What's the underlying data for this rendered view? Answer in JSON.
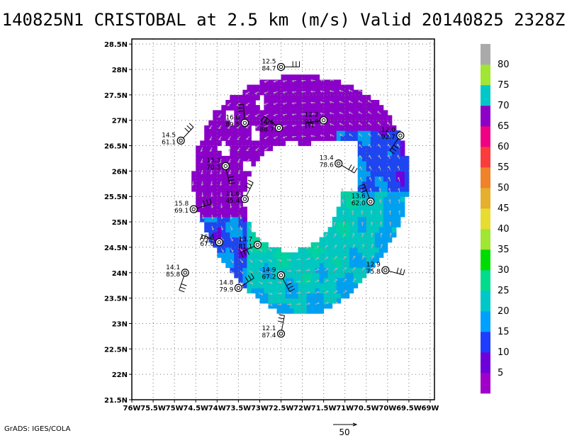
{
  "title": "140825N1 CRISTOBAL at 2.5 km (m/s) Valid 20140825 2328Z",
  "credit": "GrADS: IGES/COLA",
  "chart_data": {
    "type": "heatmap",
    "title": "140825N1 CRISTOBAL at 2.5 km (m/s) Valid 20140825 2328Z",
    "xlabel": "",
    "ylabel": "",
    "xlim": [
      -76,
      -68.9
    ],
    "ylim": [
      21.5,
      28.6
    ],
    "grid": true,
    "x_ticks": [
      "76W",
      "75.5W",
      "75W",
      "74.5W",
      "74W",
      "73.5W",
      "73W",
      "72.5W",
      "72W",
      "71.5W",
      "71W",
      "70.5W",
      "70W",
      "69.5W",
      "69W"
    ],
    "y_ticks": [
      "21.5N",
      "22N",
      "22.5N",
      "23N",
      "23.5N",
      "24N",
      "24.5N",
      "25N",
      "25.5N",
      "26N",
      "26.5N",
      "27N",
      "27.5N",
      "28N",
      "28.5N"
    ],
    "colorbar": {
      "labels": [
        "5",
        "10",
        "15",
        "20",
        "25",
        "30",
        "35",
        "40",
        "45",
        "50",
        "55",
        "60",
        "65",
        "70",
        "75",
        "80"
      ],
      "colors": [
        "#a000c8",
        "#6e00dc",
        "#1e3cff",
        "#00a0ff",
        "#00c8c8",
        "#00dc8c",
        "#00dc00",
        "#a0e632",
        "#e6dc32",
        "#e6af2d",
        "#f08228",
        "#fa3c3c",
        "#f00082",
        "#8c00c8",
        "#00c8c8",
        "#a0e632",
        "#aaaaaa"
      ]
    },
    "vector_reference": "50",
    "stations": [
      {
        "lon": -72.5,
        "lat": 28.05,
        "speed": "12.5",
        "dir": "84.7"
      },
      {
        "lon": -74.85,
        "lat": 26.6,
        "speed": "14.5",
        "dir": "61.1"
      },
      {
        "lon": -73.35,
        "lat": 26.95,
        "speed": "16.6",
        "dir": "89.5"
      },
      {
        "lon": -72.55,
        "lat": 26.85,
        "speed": "14.6",
        "dir": "88.7"
      },
      {
        "lon": -71.5,
        "lat": 27.0,
        "speed": "12.2",
        "dir": "91.6"
      },
      {
        "lon": -69.7,
        "lat": 26.7,
        "speed": "12.0",
        "dir": "92.7"
      },
      {
        "lon": -73.8,
        "lat": 26.1,
        "speed": "15.3",
        "dir": "70.3"
      },
      {
        "lon": -71.15,
        "lat": 26.15,
        "speed": "13.4",
        "dir": "78.6"
      },
      {
        "lon": -74.55,
        "lat": 25.25,
        "speed": "15.8",
        "dir": "69.1"
      },
      {
        "lon": -73.35,
        "lat": 25.45,
        "speed": "11.6",
        "dir": "45.4"
      },
      {
        "lon": -70.4,
        "lat": 25.4,
        "speed": "13.6",
        "dir": "62.0"
      },
      {
        "lon": -73.95,
        "lat": 24.6,
        "speed": "16.4",
        "dir": "67.6"
      },
      {
        "lon": -73.05,
        "lat": 24.55,
        "speed": "13.7",
        "dir": "81.1"
      },
      {
        "lon": -74.75,
        "lat": 24.0,
        "speed": "14.1",
        "dir": "85.8"
      },
      {
        "lon": -72.5,
        "lat": 23.95,
        "speed": "14.9",
        "dir": "67.2"
      },
      {
        "lon": -70.05,
        "lat": 24.05,
        "speed": "12.9",
        "dir": "75.8"
      },
      {
        "lon": -73.5,
        "lat": 23.7,
        "speed": "14.8",
        "dir": "79.9"
      },
      {
        "lon": -72.5,
        "lat": 22.8,
        "speed": "12.1",
        "dir": "87.4"
      }
    ]
  }
}
